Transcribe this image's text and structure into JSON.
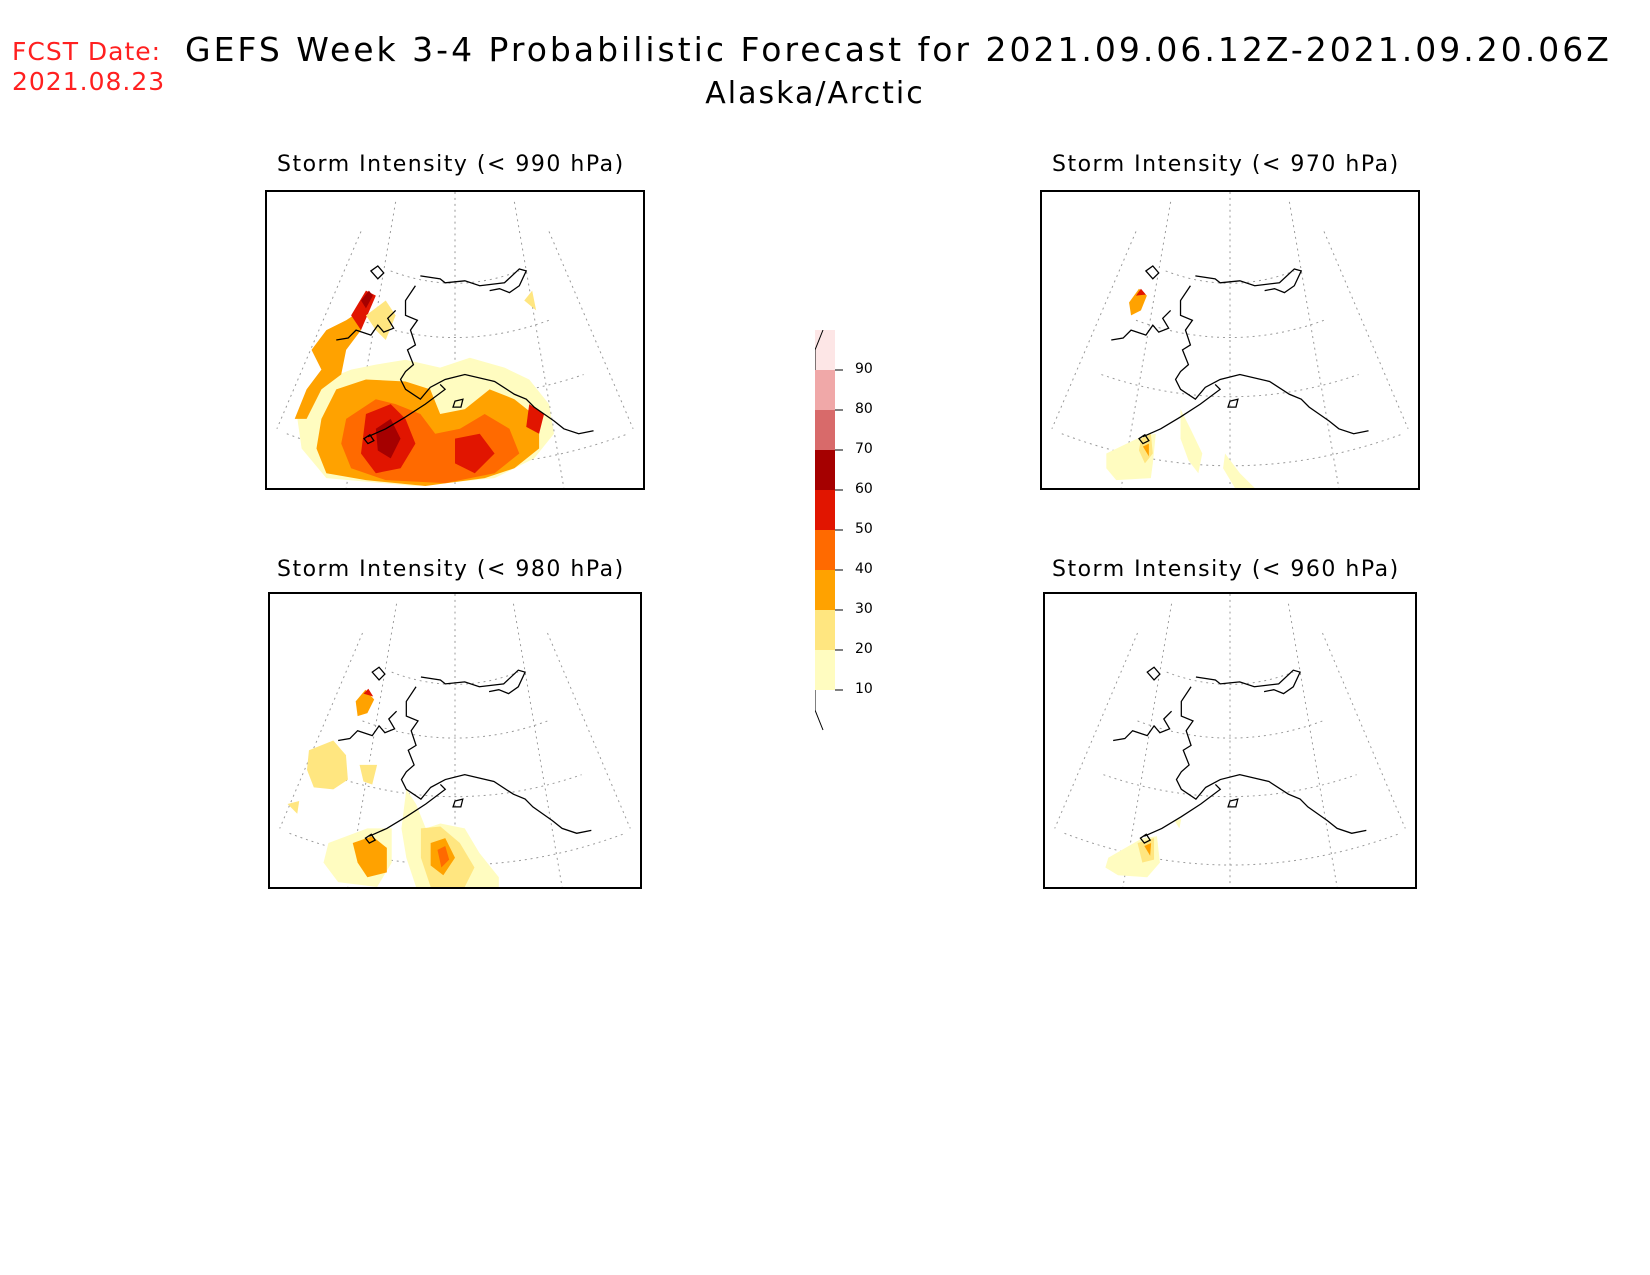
{
  "header": {
    "fcst_label": "FCST Date:",
    "fcst_value": "2021.08.23",
    "title": "GEFS Week 3-4 Probabilistic Forecast for 2021.09.06.12Z-2021.09.20.06Z",
    "subtitle": "Alaska/Arctic"
  },
  "panels": [
    {
      "id": "p990",
      "title": "Storm Intensity (< 990 hPa)"
    },
    {
      "id": "p970",
      "title": "Storm Intensity (< 970 hPa)"
    },
    {
      "id": "p980",
      "title": "Storm Intensity (< 980 hPa)"
    },
    {
      "id": "p960",
      "title": "Storm Intensity (< 960 hPa)"
    }
  ],
  "colorbar": {
    "levels": [
      "10",
      "20",
      "30",
      "40",
      "50",
      "60",
      "70",
      "80",
      "90"
    ],
    "colors": [
      "#fffcc0",
      "#ffe680",
      "#ffa200",
      "#ff6a00",
      "#e11500",
      "#a50000",
      "#d86a6a",
      "#f0a8a8",
      "#fde6e6"
    ]
  }
}
